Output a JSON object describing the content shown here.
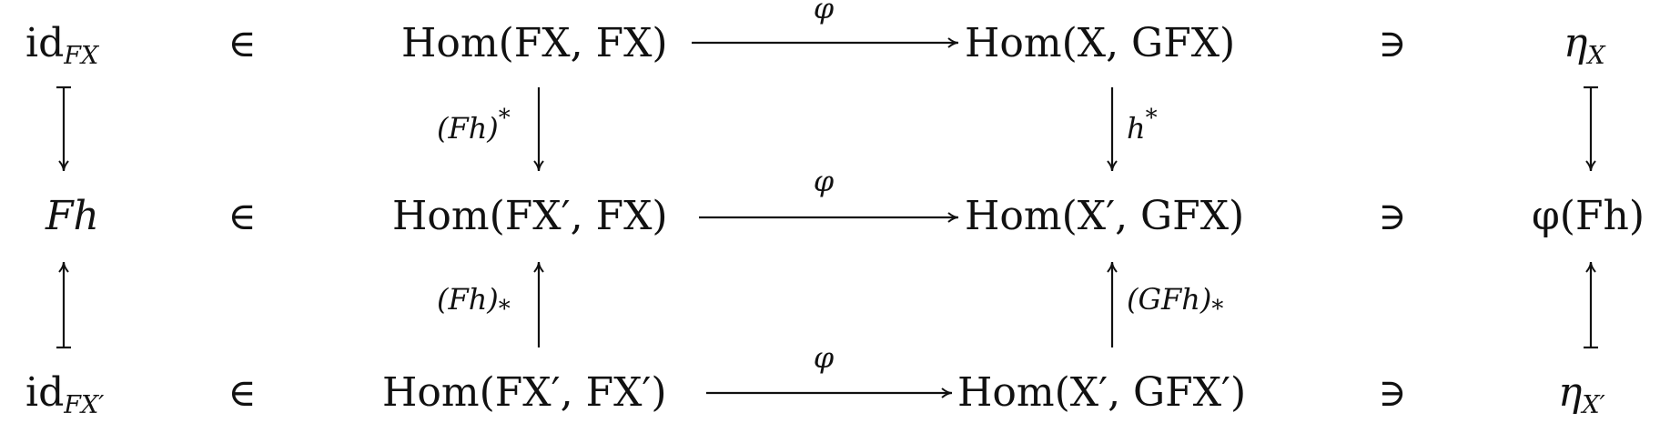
{
  "membership": {
    "element_of": "∈",
    "contains": "∋"
  },
  "nodes": {
    "row1": {
      "left_elem_base": "id",
      "left_elem_sub": "FX",
      "hom_left": "Hom(FX, FX)",
      "hom_right": "Hom(X, GFX)",
      "right_elem_base": "η",
      "right_elem_sub": "X"
    },
    "row2": {
      "left_elem": "Fh",
      "hom_left": "Hom(FX′, FX)",
      "hom_right": "Hom(X′, GFX)",
      "right_elem": "φ(Fh)"
    },
    "row3": {
      "left_elem_base": "id",
      "left_elem_sub": "FX′",
      "hom_left": "Hom(FX′, FX′)",
      "hom_right": "Hom(X′, GFX′)",
      "right_elem_base": "η",
      "right_elem_sub": "X′"
    }
  },
  "arrow_labels": {
    "phi": "φ",
    "Fh_upper": "(Fh)",
    "Fh_upper_mark": "*",
    "h_star": "h",
    "h_star_mark": "*",
    "Fh_lower": "(Fh)",
    "Fh_lower_mark": "*",
    "GFh_lower": "(GFh)",
    "GFh_lower_mark": "*"
  }
}
